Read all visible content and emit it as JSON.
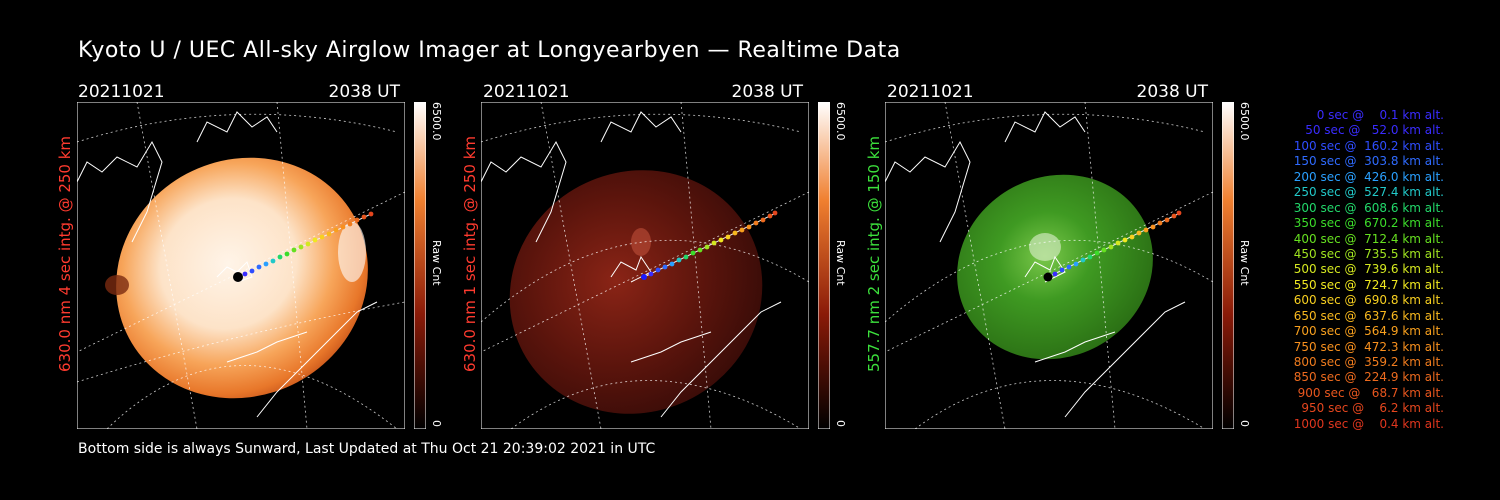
{
  "title": "Kyoto U / UEC All-sky Airglow Imager at Longyearbyen — Realtime Data",
  "footer": "Bottom side is always Sunward, Last Updated at Thu Oct 21 20:39:02 2021 in UTC",
  "panels": [
    {
      "date": "20211021",
      "time": "2038 UT",
      "side_label": "630.0 nm 4 sec intg. @ 250 km",
      "side_color": "#ff3b2f",
      "cbar_max": "6500.0",
      "cbar_min": "0",
      "cbar_unit": "Raw Cnt",
      "scheme": "orange-white"
    },
    {
      "date": "20211021",
      "time": "2038 UT",
      "side_label": "630.0 nm 1 sec intg. @ 250 km",
      "side_color": "#ff3b2f",
      "cbar_max": "6500.0",
      "cbar_min": "0",
      "cbar_unit": "Raw Cnt",
      "scheme": "dark-red"
    },
    {
      "date": "20211021",
      "time": "2038 UT",
      "side_label": "557.7 nm 2 sec intg. @ 150 km",
      "side_color": "#3ce03c",
      "cbar_max": "6500.0",
      "cbar_min": "0",
      "cbar_unit": "Raw Cnt",
      "scheme": "green"
    }
  ],
  "legend": [
    {
      "text": "0 sec @    0.1 km alt.",
      "color": "#3a2cff"
    },
    {
      "text": "50 sec @   52.0 km alt.",
      "color": "#3a2cff"
    },
    {
      "text": "100 sec @  160.2 km alt.",
      "color": "#2f4dff"
    },
    {
      "text": "150 sec @  303.8 km alt.",
      "color": "#2f6bff"
    },
    {
      "text": "200 sec @  426.0 km alt.",
      "color": "#2aa0ff"
    },
    {
      "text": "250 sec @  527.4 km alt.",
      "color": "#22c8c8"
    },
    {
      "text": "300 sec @  608.6 km alt.",
      "color": "#22d86a"
    },
    {
      "text": "350 sec @  670.2 km alt.",
      "color": "#3cdc2a"
    },
    {
      "text": "400 sec @  712.4 km alt.",
      "color": "#66e020"
    },
    {
      "text": "450 sec @  735.5 km alt.",
      "color": "#a0e420"
    },
    {
      "text": "500 sec @  739.6 km alt.",
      "color": "#d4e820"
    },
    {
      "text": "550 sec @  724.7 km alt.",
      "color": "#f0e820"
    },
    {
      "text": "600 sec @  690.8 km alt.",
      "color": "#f8d020"
    },
    {
      "text": "650 sec @  637.6 km alt.",
      "color": "#f8b81e"
    },
    {
      "text": "700 sec @  564.9 km alt.",
      "color": "#f8a01e"
    },
    {
      "text": "750 sec @  472.3 km alt.",
      "color": "#f8901e"
    },
    {
      "text": "800 sec @  359.2 km alt.",
      "color": "#f07c1e"
    },
    {
      "text": "850 sec @  224.9 km alt.",
      "color": "#ec6a1e"
    },
    {
      "text": "900 sec @   68.7 km alt.",
      "color": "#e8561e"
    },
    {
      "text": "950 sec @    6.2 km alt.",
      "color": "#e4461e"
    },
    {
      "text": "1000 sec @    0.4 km alt.",
      "color": "#e0361e"
    }
  ]
}
